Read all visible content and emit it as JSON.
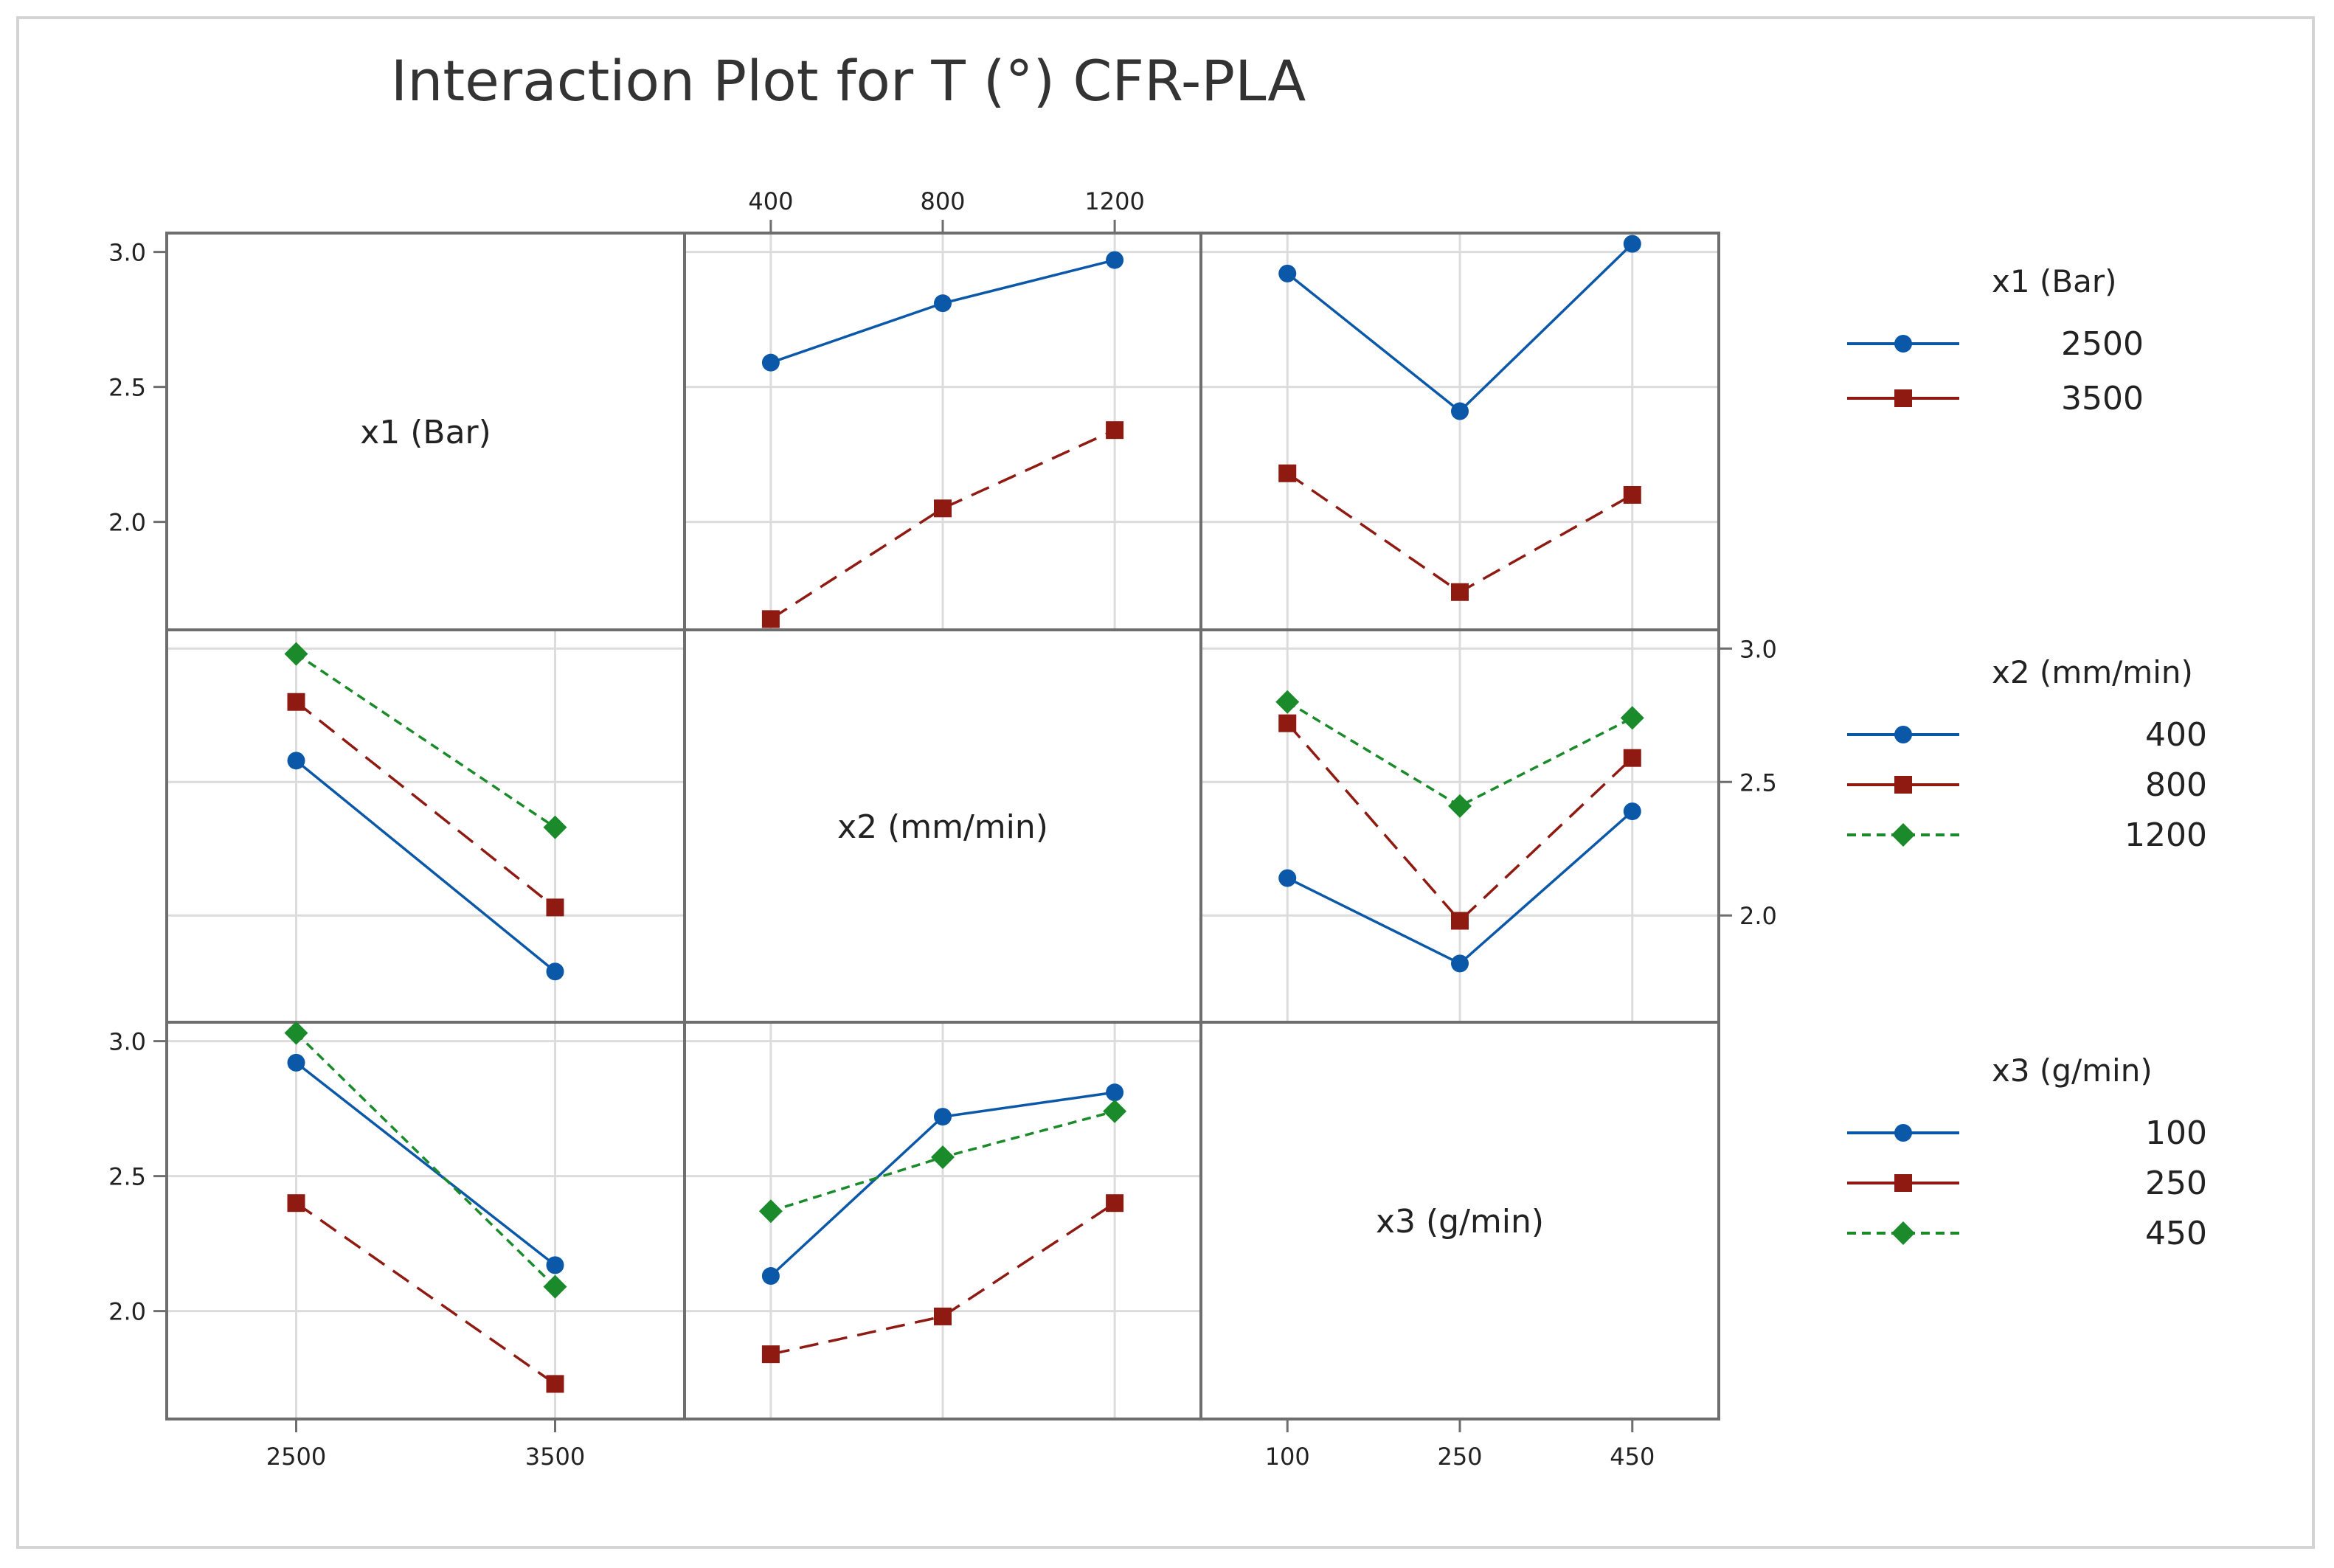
{
  "chart_data": {
    "type": "line",
    "title": "Interaction Plot for T (°) CFR-PLA",
    "factors": [
      {
        "name": "x1 (Bar)",
        "levels": [
          "2500",
          "3500"
        ],
        "colors": [
          "#0b58a8",
          "#8e1a12"
        ],
        "markers": [
          "circle",
          "square"
        ],
        "dashed": [
          false,
          true
        ]
      },
      {
        "name": "x2 (mm/min)",
        "levels": [
          "400",
          "800",
          "1200"
        ],
        "colors": [
          "#0b58a8",
          "#8e1a12",
          "#1a8a2a"
        ],
        "markers": [
          "circle",
          "square",
          "diamond"
        ],
        "dashed": [
          false,
          true,
          true
        ]
      },
      {
        "name": "x3 (g/min)",
        "levels": [
          "100",
          "250",
          "450"
        ],
        "colors": [
          "#0b58a8",
          "#8e1a12",
          "#1a8a2a"
        ],
        "markers": [
          "circle",
          "square",
          "diamond"
        ],
        "dashed": [
          false,
          true,
          true
        ]
      }
    ],
    "y_ticks": [
      "2.0",
      "2.5",
      "3.0"
    ],
    "ylim": [
      1.6,
      3.07
    ],
    "grid": true,
    "legend_position": "right",
    "panels": [
      {
        "row": 0,
        "col": 1,
        "x_factor": "x2 (mm/min)",
        "trace_factor": "x1 (Bar)",
        "series": [
          {
            "level": "2500",
            "values": [
              2.59,
              2.81,
              2.97
            ]
          },
          {
            "level": "3500",
            "values": [
              1.64,
              2.05,
              2.34
            ]
          }
        ]
      },
      {
        "row": 0,
        "col": 2,
        "x_factor": "x3 (g/min)",
        "trace_factor": "x1 (Bar)",
        "series": [
          {
            "level": "2500",
            "values": [
              2.92,
              2.41,
              3.03
            ]
          },
          {
            "level": "3500",
            "values": [
              2.18,
              1.74,
              2.1
            ]
          }
        ]
      },
      {
        "row": 1,
        "col": 0,
        "x_factor": "x1 (Bar)",
        "trace_factor": "x2 (mm/min)",
        "series": [
          {
            "level": "400",
            "values": [
              2.58,
              1.79
            ]
          },
          {
            "level": "800",
            "values": [
              2.8,
              2.03
            ]
          },
          {
            "level": "1200",
            "values": [
              2.98,
              2.33
            ]
          }
        ]
      },
      {
        "row": 1,
        "col": 2,
        "x_factor": "x3 (g/min)",
        "trace_factor": "x2 (mm/min)",
        "series": [
          {
            "level": "400",
            "values": [
              2.14,
              1.82,
              2.39
            ]
          },
          {
            "level": "800",
            "values": [
              2.72,
              1.98,
              2.59
            ]
          },
          {
            "level": "1200",
            "values": [
              2.8,
              2.41,
              2.74
            ]
          }
        ]
      },
      {
        "row": 2,
        "col": 0,
        "x_factor": "x1 (Bar)",
        "trace_factor": "x3 (g/min)",
        "series": [
          {
            "level": "100",
            "values": [
              2.92,
              2.17
            ]
          },
          {
            "level": "250",
            "values": [
              2.4,
              1.73
            ]
          },
          {
            "level": "450",
            "values": [
              3.03,
              2.09
            ]
          }
        ]
      },
      {
        "row": 2,
        "col": 1,
        "x_factor": "x2 (mm/min)",
        "trace_factor": "x3 (g/min)",
        "series": [
          {
            "level": "100",
            "values": [
              2.13,
              2.72,
              2.81
            ]
          },
          {
            "level": "250",
            "values": [
              1.84,
              1.98,
              2.4
            ]
          },
          {
            "level": "450",
            "values": [
              2.37,
              2.57,
              2.74
            ]
          }
        ]
      }
    ]
  }
}
